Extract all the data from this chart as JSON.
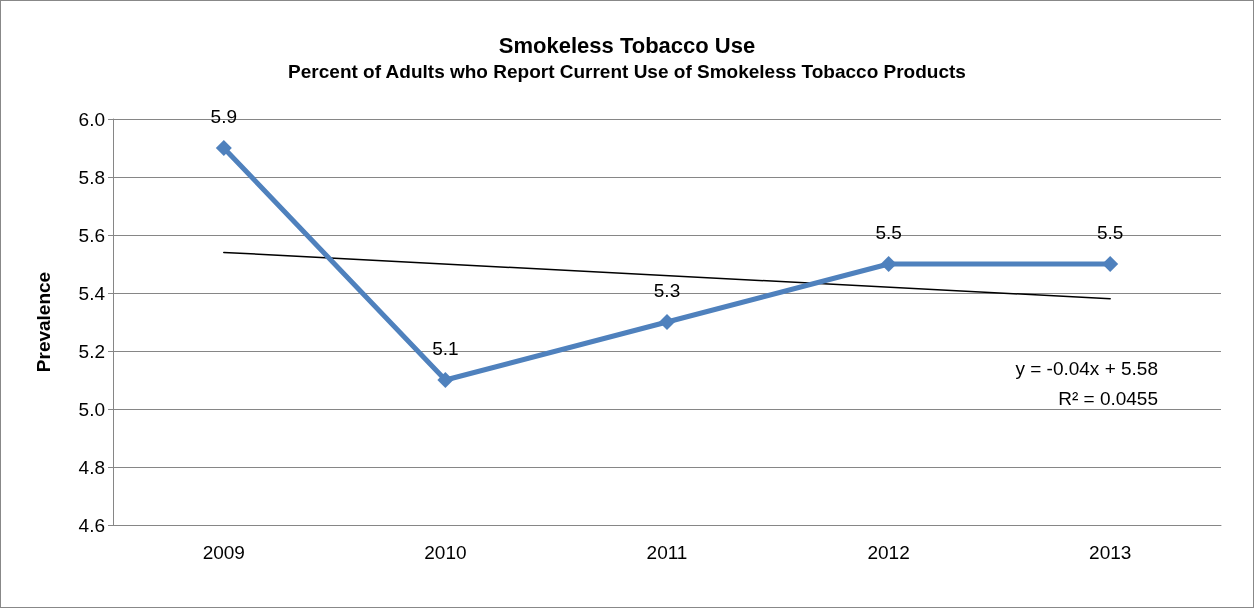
{
  "chart_data": {
    "type": "line",
    "title": "Smokeless Tobacco Use",
    "subtitle": "Percent of Adults who Report Current Use of Smokeless Tobacco Products",
    "ylabel": "Prevalence",
    "categories": [
      "2009",
      "2010",
      "2011",
      "2012",
      "2013"
    ],
    "series": [
      {
        "color": "#4f81bd",
        "values": [
          5.9,
          5.1,
          5.3,
          5.5,
          5.5
        ],
        "data_labels": true,
        "marker": "diamond"
      },
      {
        "type": "line",
        "color": "#000000",
        "values": [
          5.54,
          null,
          null,
          null,
          5.38
        ],
        "marker": "none"
      }
    ],
    "ylim": [
      4.6,
      6.0
    ],
    "yticks": [
      {
        "value": 4.6,
        "label": "4.6"
      },
      {
        "value": 4.8,
        "label": "4.8"
      },
      {
        "value": 5.0,
        "label": "5.0"
      },
      {
        "value": 5.2,
        "label": "5.2"
      },
      {
        "value": 5.4,
        "label": "5.4"
      },
      {
        "value": 5.6,
        "label": "5.6"
      },
      {
        "value": 5.8,
        "label": "5.8"
      },
      {
        "value": 6.0,
        "label": "6.0"
      }
    ],
    "grid": "y",
    "annotations": [
      "y = -0.04x + 5.58",
      "R² = 0.0455"
    ]
  }
}
